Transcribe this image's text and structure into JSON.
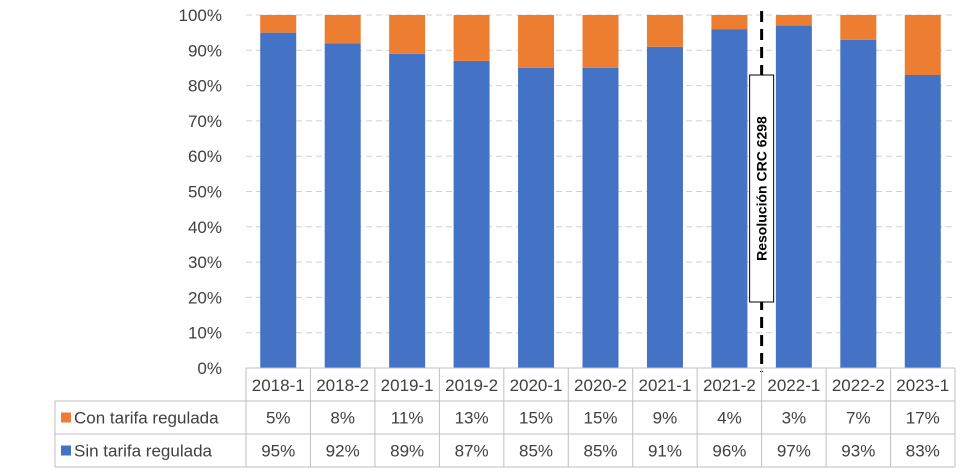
{
  "chart_data": {
    "type": "bar",
    "stacked": true,
    "categories": [
      "2018-1",
      "2018-2",
      "2019-1",
      "2019-2",
      "2020-1",
      "2020-2",
      "2021-1",
      "2021-2",
      "2022-1",
      "2022-2",
      "2023-1"
    ],
    "series": [
      {
        "name": "Sin tarifa regulada",
        "color": "#4472C4",
        "values": [
          95,
          92,
          89,
          87,
          85,
          85,
          91,
          96,
          97,
          93,
          83
        ],
        "labels": [
          "95%",
          "92%",
          "89%",
          "87%",
          "85%",
          "85%",
          "91%",
          "96%",
          "97%",
          "93%",
          "83%"
        ]
      },
      {
        "name": "Con tarifa regulada",
        "color": "#ED7D31",
        "values": [
          5,
          8,
          11,
          13,
          15,
          15,
          9,
          4,
          3,
          7,
          17
        ],
        "labels": [
          "5%",
          "8%",
          "11%",
          "13%",
          "15%",
          "15%",
          "9%",
          "4%",
          "3%",
          "7%",
          "17%"
        ]
      }
    ],
    "ylim": [
      0,
      100
    ],
    "yticks": [
      "0%",
      "10%",
      "20%",
      "30%",
      "40%",
      "50%",
      "60%",
      "70%",
      "80%",
      "90%",
      "100%"
    ],
    "grid": true,
    "legend": "data-table",
    "annotation": {
      "text": "Resolución CRC 6298",
      "after_category": "2021-2"
    },
    "title": "",
    "xlabel": "",
    "ylabel": ""
  }
}
